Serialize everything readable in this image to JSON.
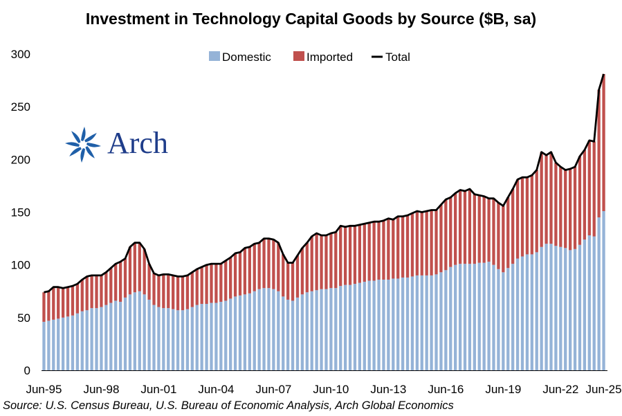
{
  "chart_data": {
    "type": "bar",
    "stacked": true,
    "title": "Investment in Technology Capital Goods by Source ($B, sa)",
    "xlabel": "",
    "ylabel": "",
    "ylim": [
      0,
      300
    ],
    "yticks": [
      0,
      50,
      100,
      150,
      200,
      250,
      300
    ],
    "xtick_labels": [
      "Jun-95",
      "Jun-98",
      "Jun-01",
      "Jun-04",
      "Jun-07",
      "Jun-10",
      "Jun-13",
      "Jun-16",
      "Jun-19",
      "Jun-22",
      "Jun-25"
    ],
    "legend": {
      "placement": "top-center",
      "entries": [
        "Domestic",
        "Imported",
        "Total"
      ]
    },
    "colors": {
      "domestic": "#95b3d7",
      "imported": "#c0504d",
      "total": "#000000"
    },
    "series": [
      {
        "name": "Domestic",
        "values": [
          46,
          47,
          48,
          49,
          50,
          51,
          52,
          54,
          56,
          57,
          59,
          59,
          60,
          62,
          64,
          66,
          65,
          69,
          72,
          74,
          75,
          72,
          67,
          62,
          60,
          59,
          59,
          58,
          57,
          57,
          58,
          60,
          62,
          63,
          63,
          64,
          64,
          65,
          66,
          68,
          70,
          71,
          72,
          73,
          75,
          77,
          78,
          78,
          77,
          75,
          70,
          67,
          66,
          69,
          72,
          74,
          75,
          76,
          77,
          77,
          78,
          78,
          80,
          81,
          81,
          82,
          83,
          84,
          85,
          85,
          86,
          86,
          86,
          87,
          87,
          88,
          88,
          89,
          90,
          90,
          90,
          90,
          91,
          93,
          95,
          98,
          100,
          101,
          101,
          101,
          101,
          102,
          102,
          103,
          100,
          96,
          93,
          97,
          101,
          106,
          108,
          110,
          110,
          112,
          117,
          120,
          120,
          118,
          117,
          116,
          114,
          115,
          119,
          124,
          128,
          127,
          145,
          151
        ]
      },
      {
        "name": "Imported",
        "values": [
          28,
          28,
          31,
          30,
          28,
          28,
          28,
          28,
          30,
          32,
          31,
          31,
          30,
          31,
          33,
          35,
          38,
          37,
          45,
          47,
          46,
          43,
          34,
          30,
          30,
          32,
          32,
          32,
          32,
          32,
          32,
          33,
          34,
          35,
          37,
          37,
          37,
          36,
          38,
          39,
          41,
          41,
          44,
          44,
          45,
          44,
          47,
          47,
          47,
          46,
          40,
          35,
          36,
          40,
          44,
          47,
          52,
          54,
          51,
          51,
          52,
          53,
          57,
          55,
          56,
          55,
          55,
          55,
          55,
          56,
          55,
          56,
          58,
          56,
          59,
          58,
          59,
          60,
          61,
          60,
          61,
          62,
          61,
          64,
          67,
          66,
          68,
          70,
          69,
          71,
          66,
          64,
          63,
          60,
          63,
          63,
          63,
          67,
          71,
          75,
          75,
          73,
          75,
          78,
          90,
          84,
          87,
          79,
          76,
          74,
          77,
          78,
          84,
          85,
          90,
          90,
          121,
          130
        ]
      },
      {
        "name": "Total",
        "values": [
          74,
          75,
          79,
          79,
          78,
          79,
          80,
          82,
          86,
          89,
          90,
          90,
          90,
          93,
          97,
          101,
          103,
          106,
          117,
          121,
          121,
          115,
          101,
          92,
          90,
          91,
          91,
          90,
          89,
          89,
          90,
          93,
          96,
          98,
          100,
          101,
          101,
          101,
          104,
          107,
          111,
          112,
          116,
          117,
          120,
          121,
          125,
          125,
          124,
          121,
          110,
          102,
          102,
          109,
          116,
          121,
          127,
          130,
          128,
          128,
          130,
          131,
          137,
          136,
          137,
          137,
          138,
          139,
          140,
          141,
          141,
          142,
          144,
          143,
          146,
          146,
          147,
          149,
          151,
          150,
          151,
          152,
          152,
          157,
          162,
          164,
          168,
          171,
          170,
          172,
          167,
          166,
          165,
          163,
          163,
          159,
          156,
          164,
          172,
          181,
          183,
          183,
          185,
          190,
          207,
          204,
          207,
          197,
          193,
          190,
          191,
          193,
          203,
          209,
          218,
          217,
          266,
          281
        ]
      }
    ]
  },
  "logo": {
    "text": "Arch"
  },
  "source_text": "Source: U.S. Census Bureau, U.S. Bureau of Economic Analysis, Arch Global Economics"
}
